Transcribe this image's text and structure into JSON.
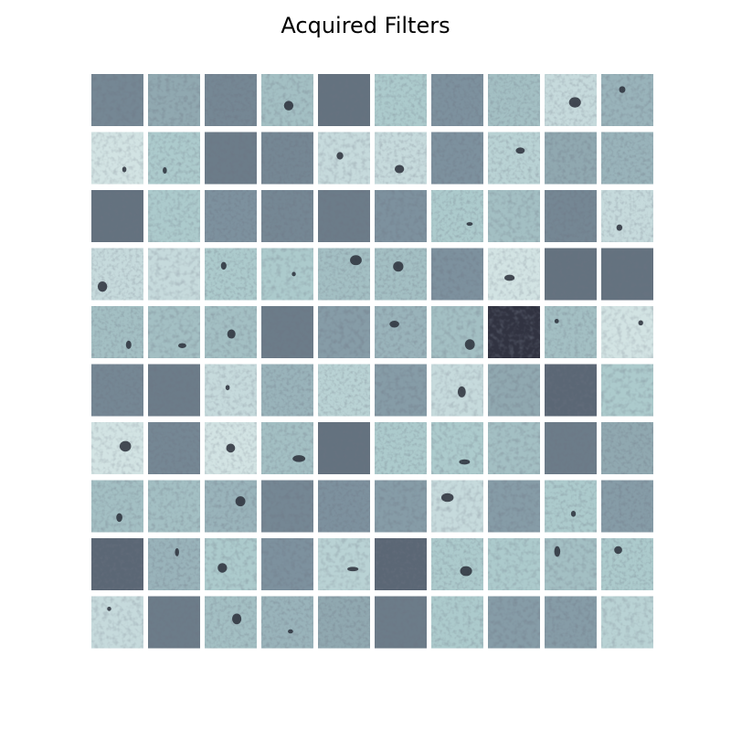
{
  "title": "Acquired Filters"
}
